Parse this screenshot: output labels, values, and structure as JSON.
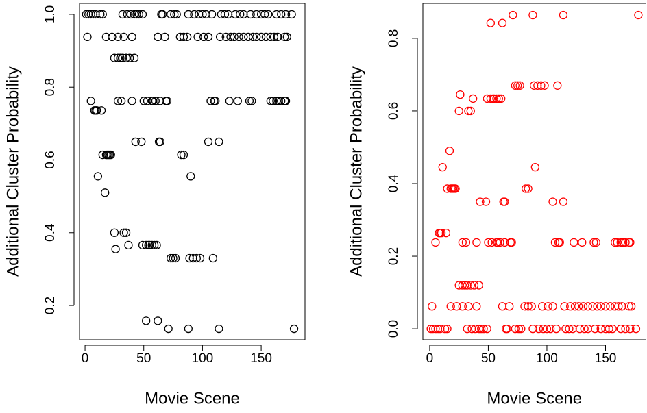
{
  "chart_data": [
    {
      "type": "scatter",
      "xlabel": "Movie Scene",
      "ylabel": "Additional Cluster Probability",
      "color": "#000000",
      "xlim": [
        -4.7,
        187.3
      ],
      "ylim": [
        0.106,
        1.03
      ],
      "xticks": [
        0,
        50,
        100,
        150
      ],
      "yticks": [
        0.2,
        0.4,
        0.6,
        0.8,
        {
          "value": 1,
          "label": "1.0"
        }
      ],
      "x": [
        1,
        3,
        5,
        7,
        9,
        13,
        15,
        32,
        36,
        39,
        42,
        44,
        46,
        49,
        65,
        66,
        73,
        76,
        78,
        88,
        93,
        97,
        100,
        103,
        108,
        116,
        119,
        122,
        128,
        132,
        135,
        141,
        146,
        150,
        153,
        156,
        163,
        167,
        171,
        176,
        2,
        18,
        23,
        28,
        33,
        40,
        62,
        68,
        81,
        84,
        87,
        96,
        101,
        105,
        115,
        120,
        124,
        127,
        131,
        135,
        139,
        143,
        146,
        150,
        154,
        158,
        161,
        164,
        170,
        172,
        25,
        28,
        30,
        32,
        35,
        38,
        42,
        5,
        28,
        31,
        40,
        50,
        53,
        57,
        58,
        60,
        64,
        69,
        70,
        107,
        110,
        111,
        123,
        130,
        140,
        142,
        158,
        160,
        163,
        165,
        167,
        170,
        171,
        8,
        9,
        10,
        14,
        43,
        48,
        63,
        64,
        105,
        114,
        15,
        18,
        19,
        20,
        21,
        22,
        82,
        84,
        11,
        90,
        17,
        25,
        33,
        35,
        37,
        49,
        52,
        54,
        55,
        57,
        59,
        61,
        26,
        73,
        75,
        77,
        89,
        92,
        95,
        98,
        109,
        52,
        62,
        71,
        88,
        114,
        178
      ],
      "values": [
        1,
        1,
        1,
        1,
        1,
        1,
        1,
        1,
        1,
        1,
        1,
        1,
        1,
        1,
        1,
        1,
        1,
        1,
        1,
        1,
        1,
        1,
        1,
        1,
        1,
        1,
        1,
        1,
        1,
        1,
        1,
        1,
        1,
        1,
        1,
        1,
        1,
        1,
        1,
        1,
        0.938,
        0.938,
        0.938,
        0.938,
        0.938,
        0.938,
        0.938,
        0.938,
        0.938,
        0.938,
        0.938,
        0.938,
        0.938,
        0.938,
        0.938,
        0.938,
        0.938,
        0.938,
        0.938,
        0.938,
        0.938,
        0.938,
        0.938,
        0.938,
        0.938,
        0.938,
        0.938,
        0.938,
        0.938,
        0.938,
        0.88,
        0.88,
        0.88,
        0.88,
        0.88,
        0.88,
        0.88,
        0.762,
        0.762,
        0.762,
        0.762,
        0.762,
        0.762,
        0.762,
        0.762,
        0.762,
        0.762,
        0.762,
        0.762,
        0.762,
        0.762,
        0.762,
        0.762,
        0.762,
        0.762,
        0.762,
        0.762,
        0.762,
        0.762,
        0.762,
        0.762,
        0.762,
        0.762,
        0.736,
        0.736,
        0.736,
        0.736,
        0.65,
        0.65,
        0.65,
        0.65,
        0.65,
        0.65,
        0.614,
        0.614,
        0.614,
        0.614,
        0.614,
        0.614,
        0.614,
        0.614,
        0.555,
        0.555,
        0.51,
        0.4,
        0.4,
        0.4,
        0.366,
        0.366,
        0.366,
        0.366,
        0.366,
        0.366,
        0.366,
        0.366,
        0.355,
        0.33,
        0.33,
        0.33,
        0.33,
        0.33,
        0.33,
        0.33,
        0.33,
        0.158,
        0.158,
        0.136,
        0.136,
        0.136,
        0.136
      ]
    },
    {
      "type": "scatter",
      "xlabel": "Movie Scene",
      "ylabel": "Additional Cluster Probability",
      "color": "#ff0000",
      "xlim": [
        -5.8,
        184.5
      ],
      "ylim": [
        -0.03,
        0.896
      ],
      "xticks": [
        0,
        50,
        100,
        150
      ],
      "yticks": [
        {
          "value": 0,
          "label": "0.0"
        },
        0.2,
        0.4,
        0.6,
        0.8
      ],
      "x": [
        1,
        3,
        5,
        7,
        9,
        13,
        15,
        32,
        36,
        39,
        42,
        44,
        46,
        49,
        65,
        66,
        73,
        76,
        78,
        88,
        93,
        97,
        100,
        103,
        108,
        116,
        119,
        122,
        128,
        132,
        135,
        141,
        146,
        150,
        153,
        156,
        163,
        167,
        171,
        176,
        2,
        18,
        23,
        28,
        33,
        40,
        62,
        68,
        81,
        84,
        87,
        96,
        101,
        105,
        115,
        120,
        124,
        127,
        131,
        135,
        139,
        143,
        146,
        150,
        154,
        158,
        161,
        164,
        170,
        172,
        25,
        28,
        30,
        32,
        35,
        38,
        42,
        5,
        28,
        31,
        40,
        50,
        53,
        57,
        58,
        60,
        64,
        69,
        70,
        107,
        110,
        111,
        123,
        130,
        140,
        142,
        158,
        160,
        163,
        165,
        167,
        170,
        171,
        8,
        9,
        10,
        14,
        43,
        48,
        63,
        64,
        105,
        114,
        15,
        18,
        19,
        20,
        21,
        22,
        82,
        84,
        11,
        90,
        17,
        25,
        33,
        35,
        37,
        49,
        52,
        54,
        55,
        57,
        59,
        61,
        26,
        73,
        75,
        77,
        89,
        92,
        95,
        98,
        109,
        52,
        62,
        71,
        88,
        114,
        178
      ],
      "values": [
        0,
        0,
        0,
        0,
        0,
        0,
        0,
        0,
        0,
        0,
        0,
        0,
        0,
        0,
        0,
        0,
        0,
        0,
        0,
        0,
        0,
        0,
        0,
        0,
        0,
        0,
        0,
        0,
        0,
        0,
        0,
        0,
        0,
        0,
        0,
        0,
        0,
        0,
        0,
        0,
        0.062,
        0.062,
        0.062,
        0.062,
        0.062,
        0.062,
        0.062,
        0.062,
        0.062,
        0.062,
        0.062,
        0.062,
        0.062,
        0.062,
        0.062,
        0.062,
        0.062,
        0.062,
        0.062,
        0.062,
        0.062,
        0.062,
        0.062,
        0.062,
        0.062,
        0.062,
        0.062,
        0.062,
        0.062,
        0.062,
        0.12,
        0.12,
        0.12,
        0.12,
        0.12,
        0.12,
        0.12,
        0.238,
        0.238,
        0.238,
        0.238,
        0.238,
        0.238,
        0.238,
        0.238,
        0.238,
        0.238,
        0.238,
        0.238,
        0.238,
        0.238,
        0.238,
        0.238,
        0.238,
        0.238,
        0.238,
        0.238,
        0.238,
        0.238,
        0.238,
        0.238,
        0.238,
        0.238,
        0.264,
        0.264,
        0.264,
        0.264,
        0.35,
        0.35,
        0.35,
        0.35,
        0.35,
        0.35,
        0.386,
        0.386,
        0.386,
        0.386,
        0.386,
        0.386,
        0.386,
        0.386,
        0.445,
        0.445,
        0.49,
        0.6,
        0.6,
        0.6,
        0.634,
        0.634,
        0.634,
        0.634,
        0.634,
        0.634,
        0.634,
        0.634,
        0.645,
        0.67,
        0.67,
        0.67,
        0.67,
        0.67,
        0.67,
        0.67,
        0.67,
        0.842,
        0.842,
        0.864,
        0.864,
        0.864,
        0.864
      ]
    }
  ]
}
